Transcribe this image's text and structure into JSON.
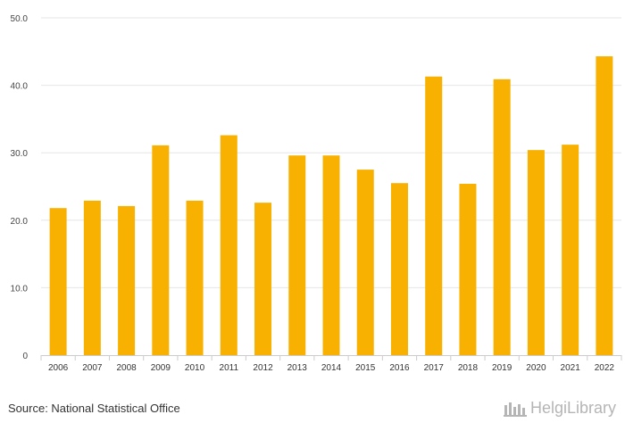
{
  "source_text": "Source: National Statistical Office",
  "brand_text": "HelgiLibrary",
  "colors": {
    "bar": "#f8b100",
    "grid": "#e6e6e6",
    "axis": "#cccccc"
  },
  "chart_data": {
    "type": "bar",
    "title": "",
    "xlabel": "",
    "ylabel": "",
    "categories": [
      "2006",
      "2007",
      "2008",
      "2009",
      "2010",
      "2011",
      "2012",
      "2013",
      "2014",
      "2015",
      "2016",
      "2017",
      "2018",
      "2019",
      "2020",
      "2021",
      "2022"
    ],
    "values": [
      21.8,
      22.9,
      22.1,
      31.1,
      22.9,
      32.6,
      22.6,
      29.6,
      29.6,
      27.5,
      25.5,
      41.3,
      25.4,
      40.9,
      30.4,
      31.2,
      44.3
    ],
    "ylim": [
      0,
      50
    ],
    "yticks": [
      0,
      10,
      20,
      30,
      40,
      50
    ],
    "ytick_labels": [
      "0",
      "10.0",
      "20.0",
      "30.0",
      "40.0",
      "50.0"
    ],
    "grid": true,
    "legend": "none"
  }
}
